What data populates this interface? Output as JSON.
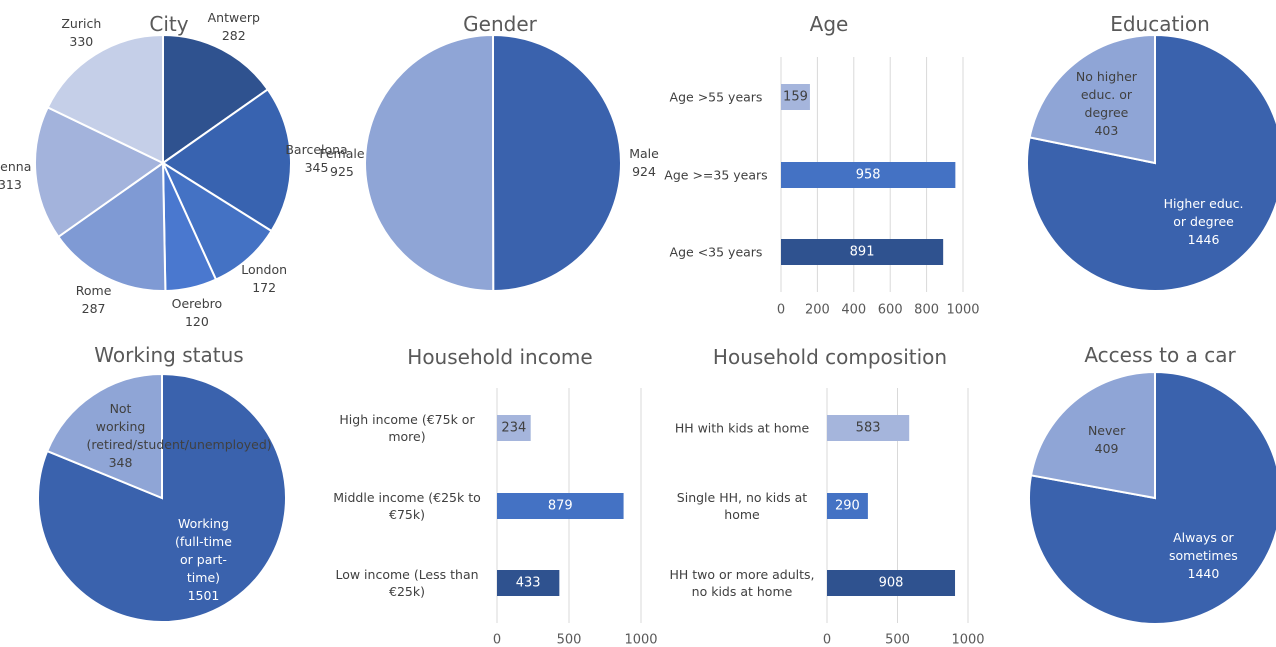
{
  "chart_data": [
    {
      "type": "pie",
      "title": "City",
      "categories": [
        "Antwerp",
        "Barcelona",
        "London",
        "Oerebro",
        "Rome",
        "Vienna",
        "Zurich"
      ],
      "values": [
        282,
        345,
        172,
        120,
        287,
        313,
        330
      ],
      "colors": [
        "#2f528f",
        "#3863b0",
        "#4472c4",
        "#4a78cf",
        "#7f9ad4",
        "#a3b3dc",
        "#c5cfe8"
      ]
    },
    {
      "type": "pie",
      "title": "Gender",
      "categories": [
        "Male",
        "Female"
      ],
      "values": [
        924,
        925
      ],
      "colors": [
        "#3a62ad",
        "#8fa5d6"
      ]
    },
    {
      "type": "barh",
      "title": "Age",
      "categories": [
        "Age >55 years",
        "Age >=35 years",
        "Age <35 years"
      ],
      "values": [
        159,
        958,
        891
      ],
      "colors": [
        "#a5b5dc",
        "#4472c4",
        "#2f528f"
      ],
      "xlim": [
        0,
        1000
      ],
      "xticks": [
        0,
        200,
        400,
        600,
        800,
        1000
      ],
      "grid": true
    },
    {
      "type": "pie",
      "title": "Education",
      "categories": [
        "Higher educ. or degree",
        "No higher educ. or degree"
      ],
      "values": [
        1446,
        403
      ],
      "colors": [
        "#3a62ad",
        "#8fa5d6"
      ]
    },
    {
      "type": "pie",
      "title": "Working status",
      "categories": [
        "Working (full-time or part-time)",
        "Not working (retired/student/unemployed)"
      ],
      "values": [
        1501,
        348
      ],
      "colors": [
        "#3a62ad",
        "#8fa5d6"
      ]
    },
    {
      "type": "barh",
      "title": "Household income",
      "categories": [
        "High income (€75k or more)",
        "Middle income (€25k to €75k)",
        "Low income (Less than €25k)"
      ],
      "values": [
        234,
        879,
        433
      ],
      "colors": [
        "#a5b5dc",
        "#4472c4",
        "#2f528f"
      ],
      "xlim": [
        0,
        1000
      ],
      "xticks": [
        0,
        500,
        1000
      ],
      "grid": true
    },
    {
      "type": "barh",
      "title": "Household composition",
      "categories": [
        "HH with kids at home",
        "Single HH, no kids at home",
        "HH two or more adults, no kids at home"
      ],
      "values": [
        583,
        290,
        908
      ],
      "colors": [
        "#a5b5dc",
        "#4472c4",
        "#2f528f"
      ],
      "xlim": [
        0,
        1000
      ],
      "xticks": [
        0,
        500,
        1000
      ],
      "grid": true
    },
    {
      "type": "pie",
      "title": "Access to a car",
      "categories": [
        "Always or sometimes",
        "Never"
      ],
      "values": [
        1440,
        409
      ],
      "colors": [
        "#3a62ad",
        "#8fa5d6"
      ]
    }
  ]
}
